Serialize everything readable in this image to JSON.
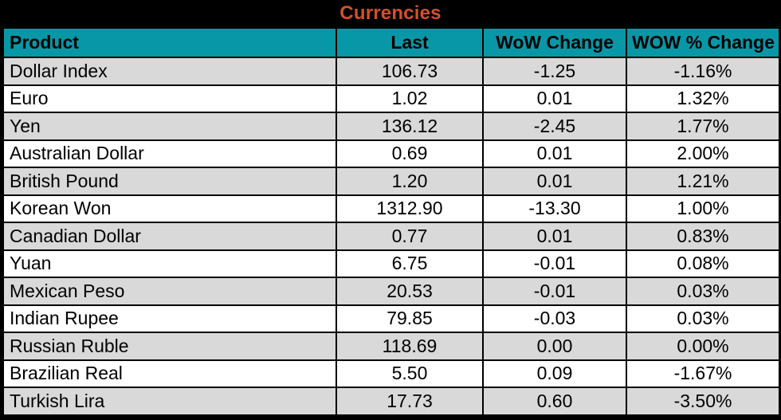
{
  "chart_data": {
    "type": "table",
    "title": "Currencies",
    "columns": [
      "Product",
      "Last",
      "WoW Change",
      "WOW % Change"
    ],
    "rows": [
      [
        "Dollar Index",
        "106.73",
        "-1.25",
        "-1.16%"
      ],
      [
        "Euro",
        "1.02",
        "0.01",
        "1.32%"
      ],
      [
        "Yen",
        "136.12",
        "-2.45",
        "1.77%"
      ],
      [
        "Australian Dollar",
        "0.69",
        "0.01",
        "2.00%"
      ],
      [
        "British Pound",
        "1.20",
        "0.01",
        "1.21%"
      ],
      [
        "Korean Won",
        "1312.90",
        "-13.30",
        "1.00%"
      ],
      [
        "Canadian Dollar",
        "0.77",
        "0.01",
        "0.83%"
      ],
      [
        "Yuan",
        "6.75",
        "-0.01",
        "0.08%"
      ],
      [
        "Mexican Peso",
        "20.53",
        "-0.01",
        "0.03%"
      ],
      [
        "Indian Rupee",
        "79.85",
        "-0.03",
        "0.03%"
      ],
      [
        "Russian Ruble",
        "118.69",
        "0.00",
        "0.00%"
      ],
      [
        "Brazilian Real",
        "5.50",
        "0.09",
        "-1.67%"
      ],
      [
        "Turkish Lira",
        "17.73",
        "0.60",
        "-3.50%"
      ]
    ]
  },
  "colors": {
    "title-color": "#D4502B",
    "header-bg": "#0897A6",
    "row-bg": "#FFFFFF",
    "row-alt-bg": "#D9D9D9",
    "border": "#000000"
  }
}
